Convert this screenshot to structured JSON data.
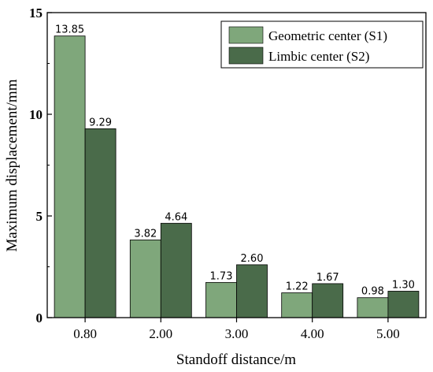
{
  "chart_data": {
    "type": "bar",
    "title": "",
    "xlabel": "Standoff distance/m",
    "ylabel": "Maximum displacement/mm",
    "categories": [
      "0.80",
      "2.00",
      "3.00",
      "4.00",
      "5.00"
    ],
    "ylim": [
      0,
      15
    ],
    "yticks": [
      "0",
      "5",
      "10",
      "15"
    ],
    "grid": false,
    "legend_position": "top-right",
    "series": [
      {
        "name": "Geometric center (S1)",
        "color": "#7fa77b",
        "values": [
          13.85,
          3.82,
          1.73,
          1.22,
          0.98
        ],
        "labels": [
          "13.85",
          "3.82",
          "1.73",
          "1.22",
          "0.98"
        ]
      },
      {
        "name": "Limbic center (S2)",
        "color": "#4a6b4a",
        "values": [
          9.29,
          4.64,
          2.6,
          1.67,
          1.3
        ],
        "labels": [
          "9.29",
          "4.64",
          "2.60",
          "1.67",
          "1.30"
        ]
      }
    ]
  }
}
